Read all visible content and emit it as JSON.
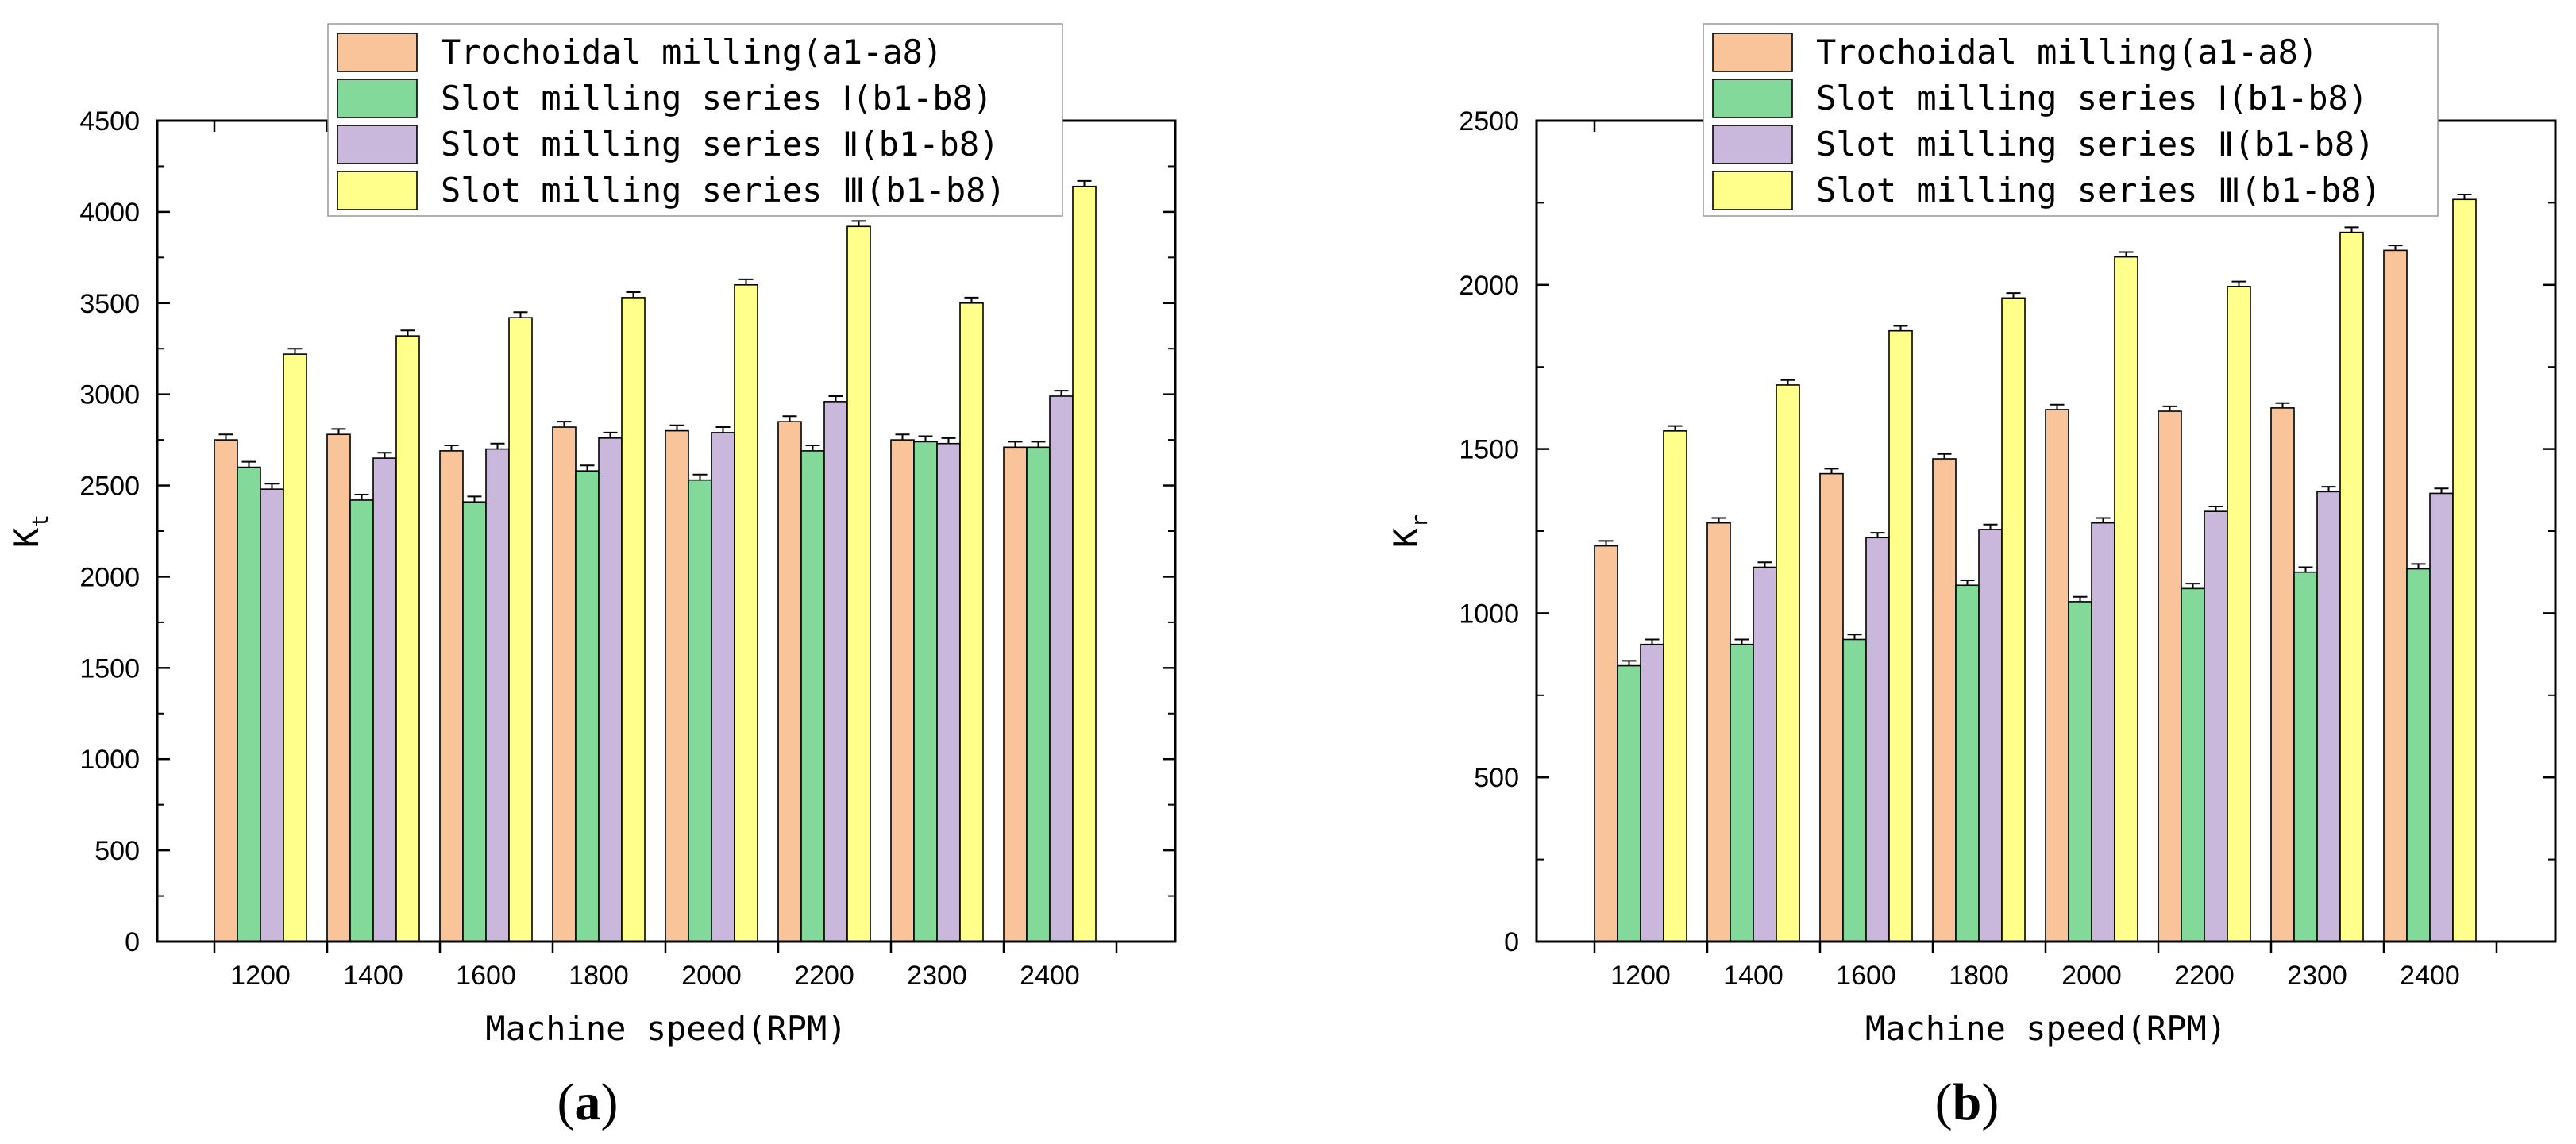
{
  "colors": {
    "Trochoidal milling(a1-a8)": "#f9c49a",
    "Slot milling series Ⅰ(b1-b8)": "#82d99a",
    "Slot milling series Ⅱ(b1-b8)": "#c9b7dc",
    "Slot milling series Ⅲ(b1-b8)": "#ffff8c"
  },
  "chart_data": [
    {
      "type": "bar",
      "panel_label": "a",
      "categories": [
        "1200",
        "1400",
        "1600",
        "1800",
        "2000",
        "2200",
        "2300",
        "2400"
      ],
      "series": [
        {
          "name": "Trochoidal milling(a1-a8)",
          "values": [
            2750,
            2780,
            2690,
            2820,
            2800,
            2850,
            2750,
            2710
          ]
        },
        {
          "name": "Slot milling series Ⅰ(b1-b8)",
          "values": [
            2600,
            2420,
            2410,
            2580,
            2530,
            2690,
            2740,
            2710
          ]
        },
        {
          "name": "Slot milling series Ⅱ(b1-b8)",
          "values": [
            2480,
            2650,
            2700,
            2760,
            2790,
            2960,
            2730,
            2990
          ]
        },
        {
          "name": "Slot milling series Ⅲ(b1-b8)",
          "values": [
            3220,
            3320,
            3420,
            3530,
            3600,
            3920,
            3500,
            4140
          ]
        }
      ],
      "error": 30,
      "xlabel": "Machine speed(RPM)",
      "ylabel_main": "K",
      "ylabel_sub": "t",
      "ylim": [
        0,
        4500
      ],
      "yticks": [
        "0",
        "500",
        "1000",
        "1500",
        "2000",
        "2500",
        "3000",
        "3500",
        "4000",
        "4500"
      ],
      "legend": "top-center"
    },
    {
      "type": "bar",
      "panel_label": "b",
      "categories": [
        "1200",
        "1400",
        "1600",
        "1800",
        "2000",
        "2200",
        "2300",
        "2400"
      ],
      "series": [
        {
          "name": "Trochoidal milling(a1-a8)",
          "values": [
            1205,
            1275,
            1425,
            1470,
            1620,
            1615,
            1625,
            2105
          ]
        },
        {
          "name": "Slot milling series Ⅰ(b1-b8)",
          "values": [
            840,
            905,
            920,
            1085,
            1035,
            1075,
            1125,
            1135
          ]
        },
        {
          "name": "Slot milling series Ⅱ(b1-b8)",
          "values": [
            905,
            1140,
            1230,
            1255,
            1275,
            1310,
            1370,
            1365
          ]
        },
        {
          "name": "Slot milling series Ⅲ(b1-b8)",
          "values": [
            1555,
            1695,
            1860,
            1960,
            2085,
            1995,
            2160,
            2260
          ]
        }
      ],
      "error": 15,
      "xlabel": "Machine speed(RPM)",
      "ylabel_main": "K",
      "ylabel_sub": "r",
      "ylim": [
        0,
        2500
      ],
      "yticks": [
        "0",
        "500",
        "1000",
        "1500",
        "2000",
        "2500"
      ],
      "legend": "top-center"
    }
  ]
}
